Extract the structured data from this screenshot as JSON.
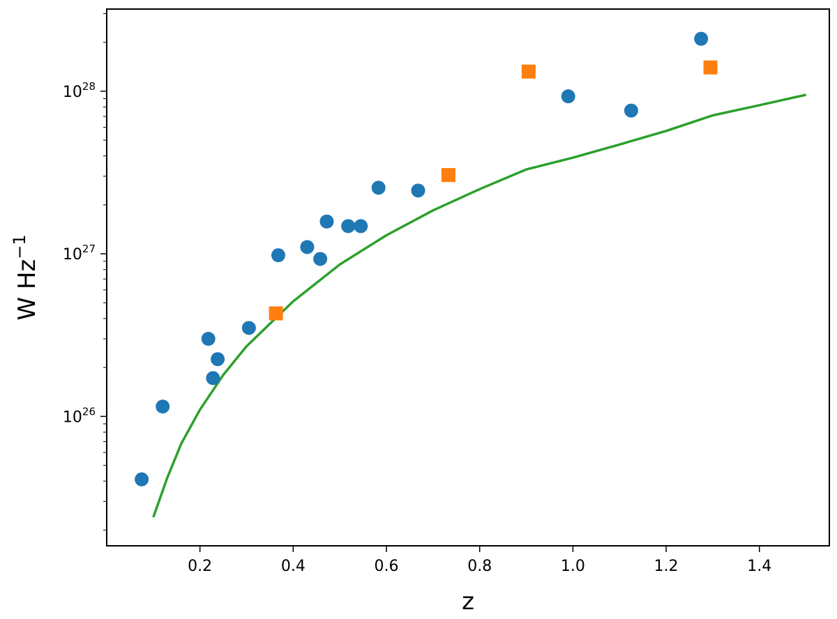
{
  "chart_data": {
    "type": "scatter",
    "title": "",
    "xlabel": "z",
    "ylabel": {
      "base": "W Hz",
      "exponent": "−1"
    },
    "xlim": [
      0.0,
      1.55
    ],
    "ylim": [
      1.6e+25,
      3.2e+28
    ],
    "yscale": "log",
    "grid": false,
    "x_ticks": [
      0.2,
      0.4,
      0.6,
      0.8,
      1.0,
      1.2,
      1.4
    ],
    "x_tick_labels": [
      "0.2",
      "0.4",
      "0.6",
      "0.8",
      "1.0",
      "1.2",
      "1.4"
    ],
    "y_ticks": [
      {
        "value": 1e+26,
        "base": "10",
        "exponent": "26"
      },
      {
        "value": 1e+27,
        "base": "10",
        "exponent": "27"
      },
      {
        "value": 1e+28,
        "base": "10",
        "exponent": "28"
      }
    ],
    "series": [
      {
        "marker": "circle",
        "color": "#1f77b4",
        "points": [
          [
            0.075,
            4.1e+25
          ],
          [
            0.12,
            1.15e+26
          ],
          [
            0.218,
            3e+26
          ],
          [
            0.228,
            1.72e+26
          ],
          [
            0.238,
            2.25e+26
          ],
          [
            0.305,
            3.5e+26
          ],
          [
            0.368,
            9.8e+26
          ],
          [
            0.43,
            1.1e+27
          ],
          [
            0.458,
            9.3e+26
          ],
          [
            0.472,
            1.58e+27
          ],
          [
            0.518,
            1.48e+27
          ],
          [
            0.545,
            1.48e+27
          ],
          [
            0.583,
            2.55e+27
          ],
          [
            0.668,
            2.45e+27
          ],
          [
            0.99,
            9.3e+27
          ],
          [
            1.125,
            7.6e+27
          ],
          [
            1.275,
            2.1e+28
          ]
        ]
      },
      {
        "marker": "square",
        "color": "#ff7f0e",
        "points": [
          [
            0.363,
            4.3e+26
          ],
          [
            0.733,
            3.05e+27
          ],
          [
            0.905,
            1.32e+28
          ],
          [
            1.295,
            1.4e+28
          ]
        ]
      },
      {
        "marker": "line",
        "color": "#2ca02c",
        "points": [
          [
            0.1,
            2.4e+25
          ],
          [
            0.13,
            4.2e+25
          ],
          [
            0.16,
            6.8e+25
          ],
          [
            0.2,
            1.1e+26
          ],
          [
            0.25,
            1.8e+26
          ],
          [
            0.3,
            2.7e+26
          ],
          [
            0.4,
            5.1e+26
          ],
          [
            0.5,
            8.6e+26
          ],
          [
            0.6,
            1.3e+27
          ],
          [
            0.7,
            1.85e+27
          ],
          [
            0.8,
            2.5e+27
          ],
          [
            0.9,
            3.3e+27
          ],
          [
            1.0,
            3.9e+27
          ],
          [
            1.1,
            4.7e+27
          ],
          [
            1.2,
            5.7e+27
          ],
          [
            1.3,
            7.1e+27
          ],
          [
            1.4,
            8.2e+27
          ],
          [
            1.5,
            9.5e+27
          ]
        ]
      }
    ]
  }
}
